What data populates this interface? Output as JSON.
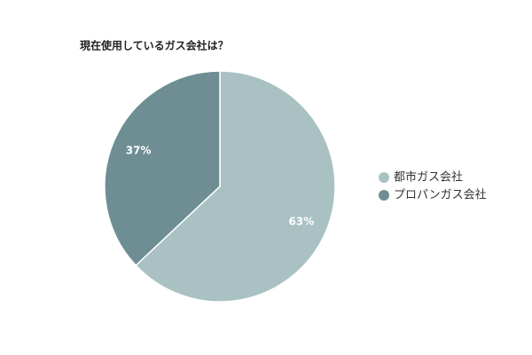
{
  "chart_data": {
    "type": "pie",
    "title": "現在使用しているガス会社は？",
    "categories": [
      "都市ガス会社",
      "プロパンガス会社"
    ],
    "values": [
      63,
      37
    ],
    "value_labels": [
      "63%",
      "37%"
    ],
    "colors": [
      "#a9c1c2",
      "#6e8e93"
    ]
  }
}
